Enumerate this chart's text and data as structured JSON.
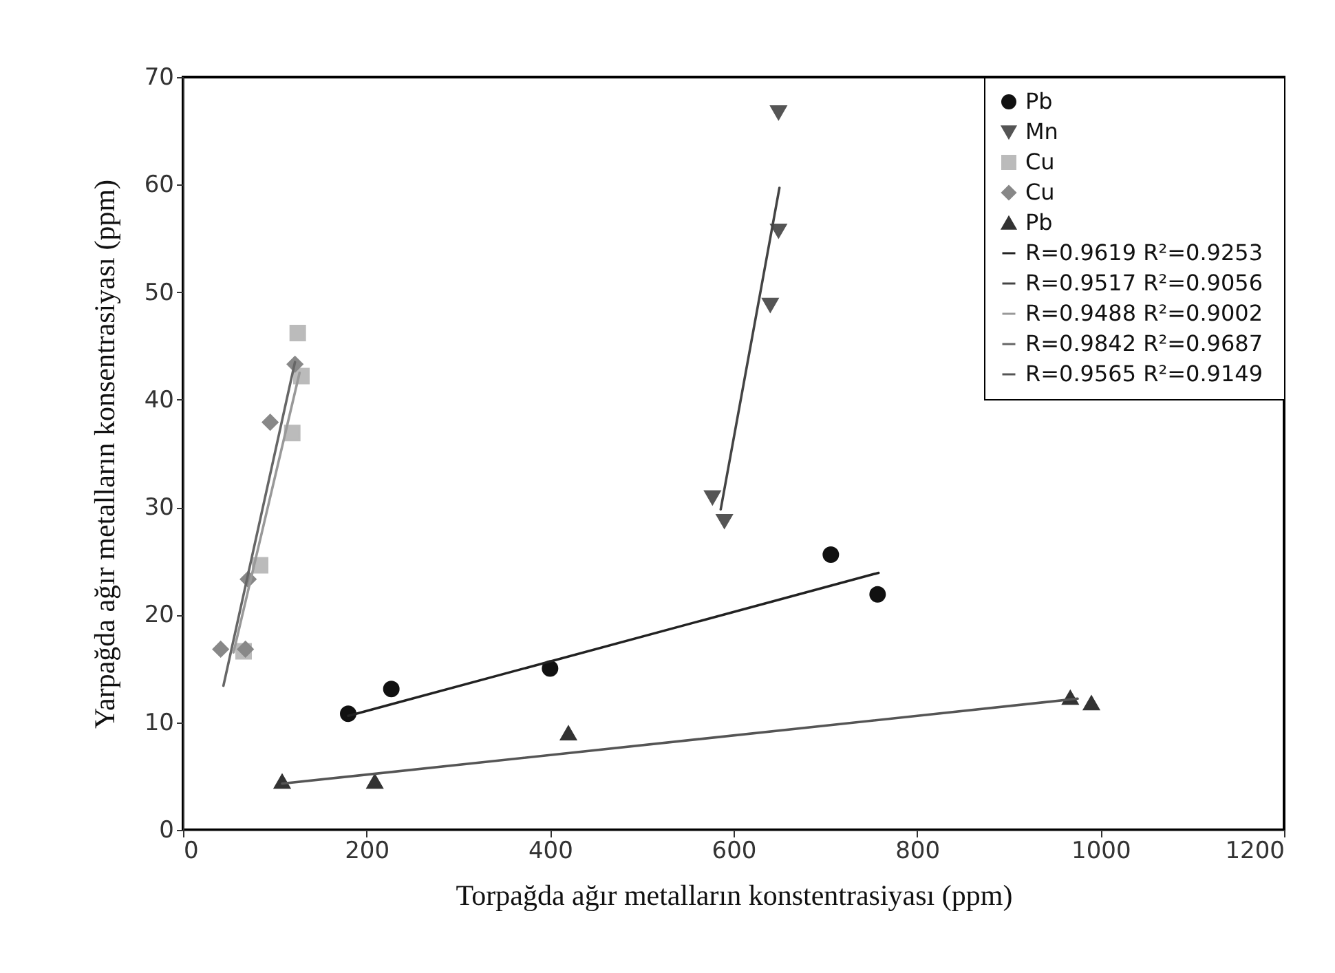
{
  "chart_data": {
    "type": "scatter",
    "xlabel": "Torpağda ağır metalların konstentrasiyası (ppm)",
    "ylabel": "Yarpağda ağır metalların konsentrasiyası (ppm)",
    "xlim": [
      0,
      1200
    ],
    "xticks": [
      0,
      200,
      400,
      600,
      800,
      1000,
      1200
    ],
    "ylim": [
      0,
      70
    ],
    "yticks": [
      0,
      10,
      20,
      30,
      40,
      50,
      60,
      70
    ],
    "grid": false,
    "legend": "top right",
    "series": [
      {
        "name": "Pb",
        "marker": "circle",
        "color": "#111111",
        "x": [
          180,
          227,
          400,
          706,
          757
        ],
        "values": [
          10.8,
          13.1,
          15.0,
          25.6,
          21.9
        ]
      },
      {
        "name": "Mn",
        "marker": "triangle-down",
        "color": "#555555",
        "x": [
          649,
          649,
          640,
          577,
          590
        ],
        "values": [
          66.7,
          55.7,
          48.8,
          30.9,
          28.7
        ]
      },
      {
        "name": "Cu",
        "marker": "square",
        "color": "#bbbbbb",
        "x": [
          125,
          129,
          119,
          84,
          66
        ],
        "values": [
          46.2,
          42.2,
          36.9,
          24.6,
          16.6
        ]
      },
      {
        "name": "Cu ",
        "marker": "diamond",
        "color": "#888888",
        "x": [
          122,
          95,
          71,
          41,
          68
        ],
        "values": [
          43.3,
          37.9,
          23.3,
          16.8,
          16.8
        ]
      },
      {
        "name": "Pb ",
        "marker": "triangle",
        "color": "#333333",
        "x": [
          108,
          209,
          420,
          967,
          990
        ],
        "values": [
          4.5,
          4.5,
          9.0,
          12.3,
          11.8
        ]
      },
      {
        "name": "R=0.9619  R²=0.9253",
        "type": "line",
        "color": "#222222",
        "x": [
          180,
          758
        ],
        "values": [
          10.6,
          23.9
        ]
      },
      {
        "name": "R=0.9517  R²=0.9056",
        "type": "line",
        "color": "#444444",
        "x": [
          586,
          650
        ],
        "values": [
          29.8,
          59.7
        ]
      },
      {
        "name": "R=0.9488  R²=0.9002",
        "type": "line",
        "color": "#999999",
        "x": [
          55,
          127
        ],
        "values": [
          16.5,
          42.5
        ]
      },
      {
        "name": "R=0.9842  R²=0.9687",
        "type": "line",
        "color": "#666666",
        "x": [
          44,
          122
        ],
        "values": [
          13.4,
          43.5
        ]
      },
      {
        "name": "R=0.9565  R²=0.9149",
        "type": "line",
        "color": "#555555",
        "x": [
          108,
          975
        ],
        "values": [
          4.3,
          12.2
        ]
      }
    ]
  }
}
